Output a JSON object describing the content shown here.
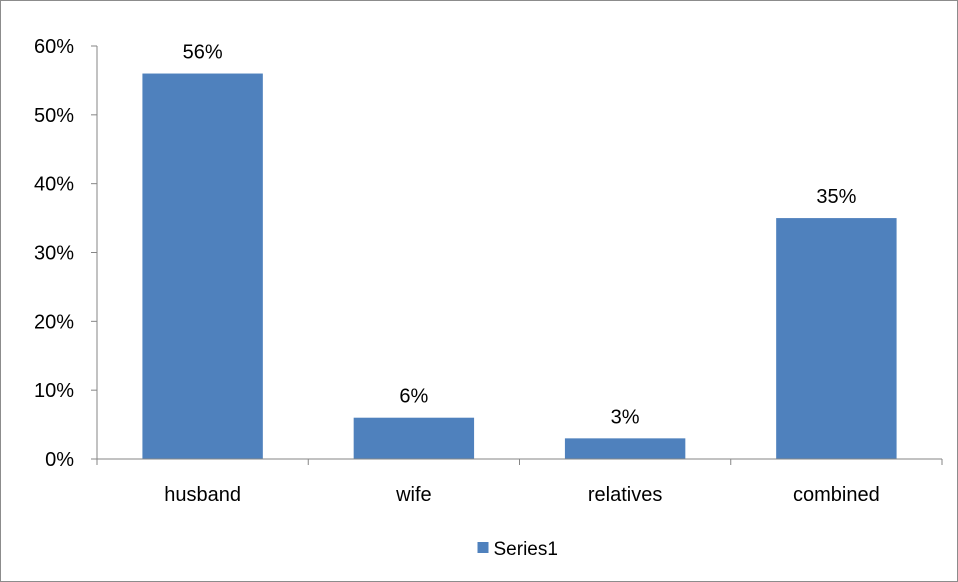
{
  "chart_data": {
    "type": "bar",
    "categories": [
      "husband",
      "wife",
      "relatives",
      "combined"
    ],
    "series": [
      {
        "name": "Series1",
        "values": [
          0.56,
          0.06,
          0.03,
          0.35
        ],
        "data_labels": [
          "56%",
          "6%",
          "3%",
          "35%"
        ],
        "color": "#4f81bd"
      }
    ],
    "ylim": [
      0,
      0.6
    ],
    "yticks": [
      {
        "value": 0,
        "label": "0%"
      },
      {
        "value": 0.1,
        "label": "10%"
      },
      {
        "value": 0.2,
        "label": "20%"
      },
      {
        "value": 0.3,
        "label": "30%"
      },
      {
        "value": 0.4,
        "label": "40%"
      },
      {
        "value": 0.5,
        "label": "50%"
      },
      {
        "value": 0.6,
        "label": "60%"
      }
    ],
    "grid": false,
    "legend_position": "bottom",
    "axis_color": "#868686"
  }
}
